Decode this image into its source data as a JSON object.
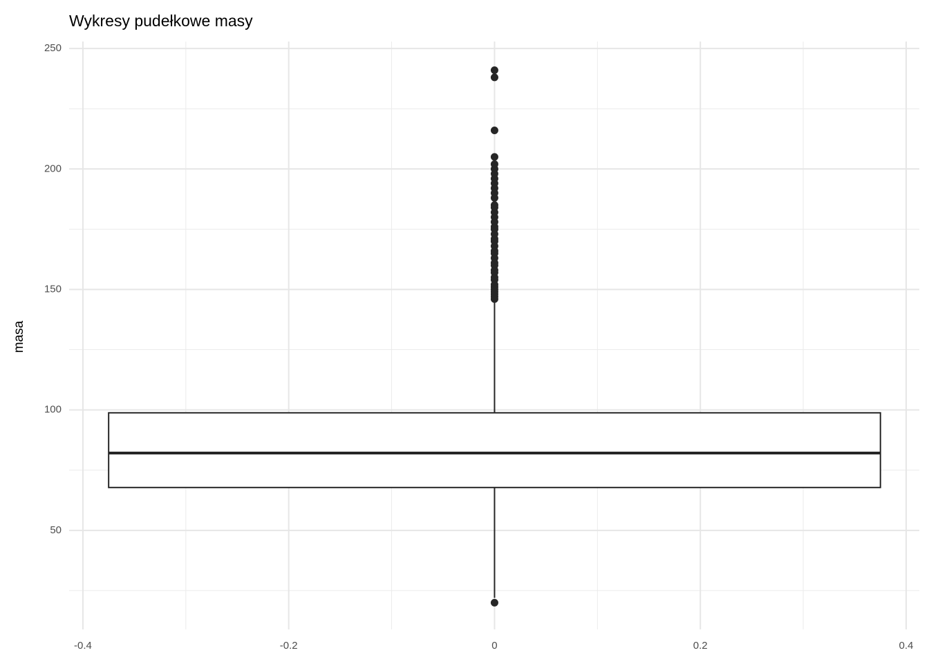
{
  "chart_data": {
    "type": "boxplot",
    "title": "Wykresy pudełkowe masy",
    "y_label": "masa",
    "xlim": [
      -0.4134,
      0.4128
    ],
    "xticks": [
      -0.4,
      -0.2,
      0.0,
      0.2,
      0.4
    ],
    "ylim": [
      8.9,
      252.9
    ],
    "yticks": [
      50,
      100,
      150,
      200,
      250
    ],
    "x_minor_grid": [
      -0.3,
      -0.1,
      0.1,
      0.3
    ],
    "y_minor_grid": [
      25,
      75,
      125,
      175,
      225
    ],
    "grid": true,
    "color": "#262626",
    "boxes": [
      {
        "x": 0,
        "width": 0.75,
        "q1": 67.8,
        "median": 82.1,
        "q3": 98.8,
        "whisker_low": 22,
        "whisker_high": 145.5,
        "outliers": [
          20,
          241,
          238,
          216,
          205,
          202,
          200,
          198,
          196,
          194,
          192,
          190,
          188,
          185,
          184,
          182,
          180,
          178,
          176,
          175,
          173,
          171,
          170,
          168,
          166,
          165,
          163,
          161,
          160,
          158,
          157,
          155,
          154,
          152,
          151,
          150,
          149,
          148,
          147,
          146
        ]
      }
    ]
  }
}
